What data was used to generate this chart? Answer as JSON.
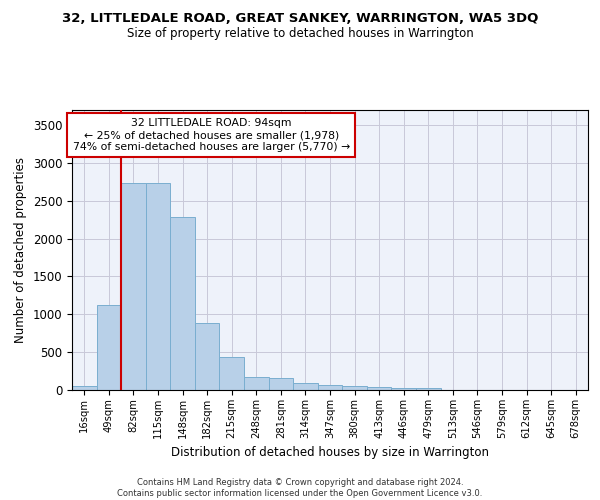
{
  "title": "32, LITTLEDALE ROAD, GREAT SANKEY, WARRINGTON, WA5 3DQ",
  "subtitle": "Size of property relative to detached houses in Warrington",
  "xlabel": "Distribution of detached houses by size in Warrington",
  "ylabel": "Number of detached properties",
  "bar_values": [
    50,
    1120,
    2730,
    2730,
    2280,
    880,
    430,
    175,
    165,
    95,
    65,
    55,
    35,
    30,
    20,
    0,
    0,
    0,
    0,
    0,
    0
  ],
  "bar_color": "#b8d0e8",
  "bar_edge_color": "#7aaed0",
  "x_labels": [
    "16sqm",
    "49sqm",
    "82sqm",
    "115sqm",
    "148sqm",
    "182sqm",
    "215sqm",
    "248sqm",
    "281sqm",
    "314sqm",
    "347sqm",
    "380sqm",
    "413sqm",
    "446sqm",
    "479sqm",
    "513sqm",
    "546sqm",
    "579sqm",
    "612sqm",
    "645sqm",
    "678sqm"
  ],
  "ylim": [
    0,
    3700
  ],
  "yticks": [
    0,
    500,
    1000,
    1500,
    2000,
    2500,
    3000,
    3500
  ],
  "annotation_text": "32 LITTLEDALE ROAD: 94sqm\n← 25% of detached houses are smaller (1,978)\n74% of semi-detached houses are larger (5,770) →",
  "vline_color": "#cc0000",
  "vline_x_index": 1.5,
  "background_color": "#eef2fa",
  "grid_color": "#c8c8d8",
  "footer_line1": "Contains HM Land Registry data © Crown copyright and database right 2024.",
  "footer_line2": "Contains public sector information licensed under the Open Government Licence v3.0."
}
